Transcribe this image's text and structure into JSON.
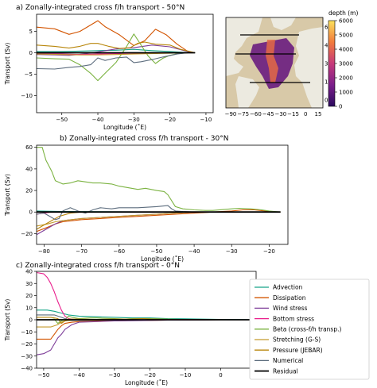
{
  "chart_data": [
    {
      "type": "line",
      "title": "a) Zonally-integrated cross f/h transport - 50°N",
      "xlabel": "Longitude (˚E)",
      "ylabel": "Transport (Sv)",
      "xlim": [
        -57,
        -8
      ],
      "ylim": [
        -14,
        9
      ],
      "xticks": [
        -50,
        -40,
        -30,
        -20,
        -10
      ],
      "yticks": [
        -10,
        -5,
        0,
        5
      ],
      "grid": false,
      "series": [
        {
          "color": "#17a589",
          "x": [
            -57,
            -50,
            -45,
            -40,
            -35,
            -30,
            -25,
            -20,
            -16,
            -14,
            -13
          ],
          "values": [
            0.3,
            0.3,
            0.4,
            0.5,
            0.6,
            0.8,
            0.5,
            0.3,
            0.1,
            0,
            0
          ]
        },
        {
          "color": "#d35400",
          "x": [
            -57,
            -52,
            -48,
            -45,
            -42,
            -40,
            -38,
            -34,
            -30,
            -27,
            -24,
            -21,
            -18,
            -15,
            -13
          ],
          "values": [
            6,
            5.6,
            4.3,
            5,
            6.5,
            7.5,
            6.1,
            4.2,
            1.7,
            2.8,
            5.5,
            4.2,
            2,
            0.3,
            0
          ]
        },
        {
          "color": "#7d3c98",
          "x": [
            -57,
            -52,
            -48,
            -44,
            -40,
            -35,
            -30,
            -25,
            -20,
            -16,
            -14,
            -13
          ],
          "values": [
            -0.4,
            -0.5,
            -0.6,
            -0.3,
            0.2,
            0.9,
            1.2,
            1.8,
            1.4,
            0.5,
            0.1,
            0
          ]
        },
        {
          "color": "#e91e8c",
          "x": [
            -57,
            -50,
            -45,
            -40,
            -35,
            -30,
            -25,
            -20,
            -16,
            -14,
            -13
          ],
          "values": [
            -0.2,
            -0.3,
            -0.4,
            -0.3,
            -0.2,
            -0.1,
            -0.1,
            0,
            0,
            0,
            0
          ]
        },
        {
          "color": "#7cb342",
          "x": [
            -57,
            -52,
            -48,
            -45,
            -42,
            -40,
            -38,
            -35,
            -32,
            -30,
            -28,
            -26,
            -24,
            -22,
            -20,
            -18,
            -15,
            -13
          ],
          "values": [
            -1.2,
            -1.4,
            -1.5,
            -2.8,
            -4.8,
            -6.5,
            -4.8,
            -2.3,
            1.5,
            4.4,
            1.8,
            -0.8,
            -2.5,
            -1.3,
            -0.6,
            -0.2,
            0,
            0
          ]
        },
        {
          "color": "#c49a2c",
          "x": [
            -57,
            -50,
            -45,
            -40,
            -35,
            -30,
            -25,
            -20,
            -16,
            -14,
            -13
          ],
          "values": [
            -0.3,
            -0.4,
            -0.5,
            -0.5,
            -0.4,
            -0.3,
            -0.2,
            -0.1,
            0,
            0,
            0
          ]
        },
        {
          "color": "#b8860b",
          "x": [
            -57,
            -52,
            -48,
            -45,
            -42,
            -40,
            -37,
            -34,
            -31,
            -29,
            -27,
            -24,
            -20,
            -17,
            -14,
            -13
          ],
          "values": [
            1.8,
            1.5,
            1.1,
            1.5,
            2.2,
            2.2,
            1.5,
            1.0,
            1.2,
            2.2,
            2.5,
            2.0,
            1.8,
            0.8,
            0.2,
            0
          ]
        },
        {
          "color": "#5d6d7e",
          "x": [
            -57,
            -52,
            -48,
            -45,
            -42,
            -40,
            -38,
            -35,
            -32,
            -30,
            -28,
            -25,
            -22,
            -18,
            -15,
            -13
          ],
          "values": [
            -3.7,
            -3.8,
            -3.4,
            -3.2,
            -2.8,
            -1.2,
            -1.8,
            -1.2,
            -1.0,
            -2.3,
            -2.1,
            -1.6,
            -1.0,
            -0.3,
            0,
            0
          ]
        },
        {
          "color": "#000000",
          "x": [
            -57,
            -13
          ],
          "values": [
            0,
            0
          ],
          "width": 1.8
        }
      ]
    },
    {
      "type": "line",
      "title": "b) Zonally-integrated cross f/h transport - 30°N",
      "xlabel": "Longitude (˚E)",
      "ylabel": "Transport (Sv)",
      "xlim": [
        -82,
        -15
      ],
      "ylim": [
        -30,
        62
      ],
      "xticks": [
        -80,
        -70,
        -60,
        -50,
        -40,
        -30,
        -20
      ],
      "yticks": [
        -20,
        0,
        20,
        40,
        60
      ],
      "grid": false,
      "series": [
        {
          "color": "#17a589",
          "x": [
            -82,
            -75,
            -65,
            -55,
            -50,
            -45,
            -40,
            -35,
            -30,
            -25,
            -20,
            -17
          ],
          "values": [
            1,
            0.5,
            0.3,
            0.2,
            0.1,
            0,
            0,
            0,
            0,
            0,
            0,
            0
          ]
        },
        {
          "color": "#d35400",
          "x": [
            -82,
            -79,
            -77,
            -75,
            -70,
            -65,
            -60,
            -55,
            -50,
            -45,
            -40,
            -35,
            -30,
            -27,
            -24,
            -21,
            -18,
            -17
          ],
          "values": [
            -18,
            -14,
            -11,
            -9,
            -7,
            -6,
            -5,
            -4,
            -3,
            -2,
            -1,
            0,
            1,
            2,
            2,
            1,
            0,
            0
          ]
        },
        {
          "color": "#7d3c98",
          "x": [
            -82,
            -79,
            -77,
            -75,
            -70,
            -65,
            -60,
            -55,
            -50,
            -45,
            -40,
            -30,
            -20,
            -17
          ],
          "values": [
            -21,
            -15,
            -11,
            -8,
            -6,
            -5,
            -4,
            -3,
            -2,
            -1,
            0,
            0,
            0,
            0
          ]
        },
        {
          "color": "#e91e8c",
          "x": [
            -82,
            -80,
            -78,
            -75,
            -70,
            -60,
            -50,
            -40,
            -30,
            -20,
            -17
          ],
          "values": [
            -2,
            -1,
            0,
            0,
            0,
            0,
            0,
            0,
            0,
            0,
            0
          ]
        },
        {
          "color": "#7cb342",
          "x": [
            -82,
            -80.5,
            -79.5,
            -78,
            -77,
            -75,
            -73,
            -71,
            -69,
            -67,
            -65,
            -62,
            -60,
            -55,
            -53,
            -50,
            -48,
            -47,
            -45,
            -43,
            -40,
            -37,
            -35,
            -30,
            -28,
            -25,
            -22,
            -20,
            -17
          ],
          "values": [
            60,
            60,
            48,
            38,
            29,
            26,
            27,
            29,
            28,
            27,
            27,
            26,
            24,
            21,
            22,
            20,
            19,
            16,
            5,
            3,
            2,
            1.5,
            1.5,
            3,
            3.5,
            3,
            2,
            1,
            0
          ]
        },
        {
          "color": "#c49a2c",
          "x": [
            -82,
            -79,
            -77,
            -75,
            -70,
            -65,
            -60,
            -55,
            -50,
            -45,
            -40,
            -30,
            -20,
            -17
          ],
          "values": [
            -13,
            -11,
            -9,
            -8,
            -6,
            -5,
            -4,
            -3,
            -2,
            -1,
            0,
            0,
            0,
            0
          ]
        },
        {
          "color": "#b8860b",
          "x": [
            -82,
            -80,
            -78,
            -76,
            -73,
            -70,
            -60,
            -50,
            -45,
            -40,
            -30,
            -20,
            -17
          ],
          "values": [
            -16,
            -12,
            -8,
            -4,
            -1,
            0,
            0,
            0,
            0,
            0,
            0,
            0,
            0
          ]
        },
        {
          "color": "#5d6d7e",
          "x": [
            -82,
            -80,
            -78,
            -77,
            -76,
            -75,
            -73,
            -71,
            -69,
            -67,
            -65,
            -62,
            -60,
            -55,
            -50,
            -47,
            -46,
            -45,
            -43,
            -40,
            -35,
            -30,
            -25,
            -20,
            -17
          ],
          "values": [
            -2,
            -1,
            -5,
            -7,
            -6,
            1,
            4,
            1,
            -1,
            2,
            4,
            3,
            4,
            4,
            5,
            6,
            3,
            1,
            0.5,
            0,
            0,
            0,
            0,
            0,
            0
          ]
        },
        {
          "color": "#000000",
          "x": [
            -82,
            -17
          ],
          "values": [
            0,
            0
          ],
          "width": 1.8
        }
      ]
    },
    {
      "type": "line",
      "title": "c) Zonally-integrated cross f/h transport - 0°N",
      "xlabel": "Longitude (˚E)",
      "ylabel": "Transport (Sv)",
      "xlim": [
        -52,
        10
      ],
      "ylim": [
        -40,
        40
      ],
      "xticks": [
        -50,
        -40,
        -30,
        -20,
        -10,
        0,
        10
      ],
      "yticks": [
        -40,
        -30,
        -20,
        -10,
        0,
        10,
        20,
        30,
        40
      ],
      "grid": false,
      "series": [
        {
          "color": "#17a589",
          "x": [
            -52,
            -49,
            -47,
            -45,
            -43,
            -40,
            -35,
            -30,
            -25,
            -20,
            -15,
            -10,
            -5,
            0,
            5,
            10
          ],
          "values": [
            8,
            8,
            7,
            5.5,
            4,
            3,
            2.5,
            2,
            1.5,
            1.5,
            1,
            0.8,
            0.5,
            0.3,
            0.1,
            0
          ]
        },
        {
          "color": "#d35400",
          "x": [
            -52,
            -48,
            -47,
            -46,
            -45,
            -44,
            -42,
            -40,
            -35,
            -30,
            -25,
            -20,
            -15,
            -10,
            -5,
            0,
            5,
            10
          ],
          "values": [
            -16,
            -16,
            -12,
            -8,
            -5,
            -3,
            -2,
            -1.5,
            -1,
            -1,
            -0.5,
            -0.5,
            -0.3,
            -0.2,
            -0.1,
            0,
            0,
            0
          ]
        },
        {
          "color": "#7d3c98",
          "x": [
            -52,
            -50,
            -48,
            -47,
            -46,
            -45,
            -44,
            -42,
            -40,
            -35,
            -30,
            -25,
            -20,
            -15,
            -10,
            -5,
            0,
            5,
            10
          ],
          "values": [
            -29,
            -28,
            -25,
            -20,
            -15,
            -12,
            -8,
            -4,
            -2,
            -1.5,
            -1,
            -0.8,
            -0.5,
            -0.3,
            -0.2,
            -0.1,
            0,
            0,
            0
          ]
        },
        {
          "color": "#e91e8c",
          "x": [
            -52,
            -50,
            -49,
            -48,
            -47,
            -46,
            -45,
            -44,
            -43,
            -42,
            -40,
            -35,
            -30,
            -20,
            -10,
            0,
            10
          ],
          "values": [
            39,
            38,
            35,
            30,
            23,
            15,
            8,
            3,
            1,
            0.5,
            0.3,
            0.2,
            0,
            0,
            0,
            0,
            0
          ]
        },
        {
          "color": "#7cb342",
          "x": [
            -52,
            -49,
            -47,
            -46,
            -45,
            -44,
            -43,
            -42,
            -40,
            -37,
            -35,
            -30,
            -27,
            -25,
            -22,
            -20,
            -15,
            -10,
            -5,
            0,
            5,
            10
          ],
          "values": [
            0,
            0,
            0.5,
            -3,
            -1,
            0,
            3,
            2,
            1,
            1.5,
            1.5,
            1,
            0.5,
            1,
            1,
            1,
            0.5,
            0.2,
            0,
            0,
            0,
            0
          ]
        },
        {
          "color": "#c49a2c",
          "x": [
            -52,
            -48,
            -46,
            -45,
            -44,
            -42,
            -40,
            -35,
            -30,
            -25,
            -20,
            -15,
            -10,
            -5,
            0,
            5,
            10
          ],
          "values": [
            -6,
            -6,
            -4,
            -2,
            -1,
            -0.5,
            -0.3,
            0,
            0,
            0,
            0,
            0,
            0,
            0,
            0,
            0,
            0
          ]
        },
        {
          "color": "#b8860b",
          "x": [
            -52,
            -48,
            -46,
            -45,
            -44,
            -43,
            -42,
            -40,
            -35,
            -30,
            -25,
            -22,
            -20,
            -15,
            -10,
            -5,
            0,
            5,
            10
          ],
          "values": [
            2,
            2,
            1,
            -3,
            -1,
            0.5,
            0.5,
            0.5,
            0.3,
            0.5,
            0.5,
            1,
            0.5,
            0.3,
            0.2,
            0.1,
            0,
            0,
            0
          ]
        },
        {
          "color": "#5d6d7e",
          "x": [
            -52,
            -48,
            -47,
            -46,
            -45,
            -44,
            -43,
            -42,
            -40,
            -35,
            -30,
            -25,
            -20,
            -15,
            -10,
            -5,
            0,
            5,
            10
          ],
          "values": [
            4,
            4,
            4,
            3,
            2,
            1,
            0,
            -0.5,
            -0.5,
            -0.3,
            -0.2,
            -0.1,
            0,
            0,
            0,
            0,
            0,
            0,
            0
          ]
        },
        {
          "color": "#000000",
          "x": [
            -52,
            10
          ],
          "values": [
            0,
            0
          ],
          "width": 1.8
        }
      ]
    }
  ],
  "map": {
    "lon_ticks": [
      "−90",
      "−75",
      "−60",
      "−45",
      "−30",
      "−15",
      "0",
      "15"
    ],
    "lat_ticks": [
      "60",
      "45",
      "30",
      "15",
      "0"
    ],
    "colorbar": {
      "label": "depth (m)",
      "ticks": [
        "6000",
        "5000",
        "4000",
        "3000",
        "2000",
        "1000",
        "0"
      ],
      "range": [
        0,
        6000
      ]
    }
  },
  "legend": {
    "items": [
      {
        "label": "Advection",
        "color": "#17a589"
      },
      {
        "label": "Dissipation",
        "color": "#d35400"
      },
      {
        "label": "Wind stress",
        "color": "#7d3c98"
      },
      {
        "label": "Bottom stress",
        "color": "#e91e8c"
      },
      {
        "label": "Beta (cross-f/h transp.)",
        "color": "#7cb342"
      },
      {
        "label": "Stretching (G-S)",
        "color": "#c49a2c"
      },
      {
        "label": "Pressure (JEBAR)",
        "color": "#b8860b"
      },
      {
        "label": "Numerical",
        "color": "#5d6d7e"
      },
      {
        "label": "Residual",
        "color": "#000000"
      }
    ]
  }
}
